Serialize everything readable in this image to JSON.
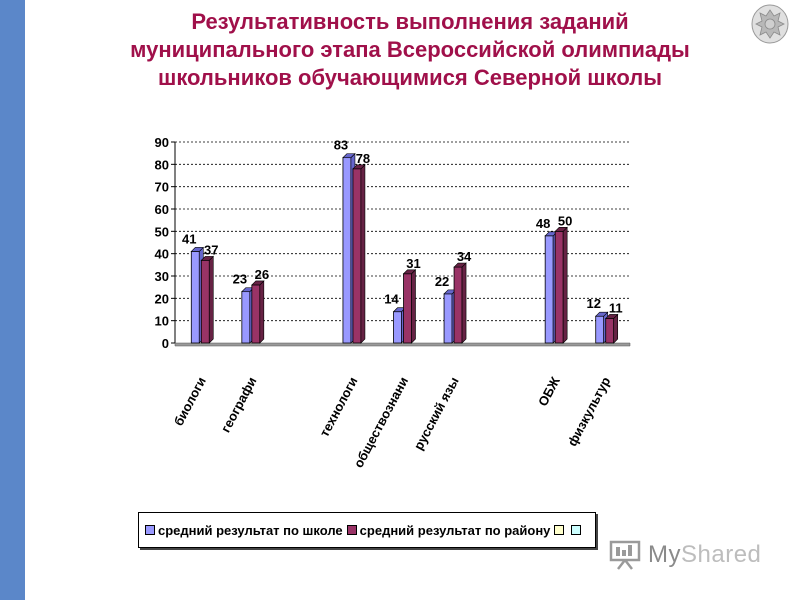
{
  "slide": {
    "title_lines": [
      "Результативность выполнения заданий",
      "муниципального этапа Всероссийской олимпиады",
      "школьников обучающимися  Северной школы"
    ],
    "emblem_icon": "coat-of-arms-icon",
    "accent_color": "#5b87c9",
    "title_color": "#a0104a"
  },
  "chart_data": {
    "type": "bar",
    "title": "",
    "xlabel": "",
    "ylabel": "",
    "ylim": [
      0,
      90
    ],
    "yticks": [
      0,
      10,
      20,
      30,
      40,
      50,
      60,
      70,
      80,
      90
    ],
    "grid": true,
    "categories": [
      "биологии",
      "географии",
      "",
      "технология",
      "обществознание",
      "русский язык",
      "",
      "ОБЖ",
      "физкультура"
    ],
    "category_labels_visible": [
      "биологи",
      "географи",
      "",
      "технологи",
      "обществознани",
      "русский язы",
      "",
      "ОБЖ",
      "физкультур"
    ],
    "series": [
      {
        "name": "средний результат по школе",
        "color": "#9999ff",
        "values": [
          41,
          23,
          null,
          83,
          14,
          22,
          null,
          48,
          12
        ]
      },
      {
        "name": "средний результат по району",
        "color": "#993366",
        "values": [
          37,
          26,
          null,
          78,
          31,
          34,
          null,
          50,
          11
        ]
      },
      {
        "name": "",
        "color": "#ffffcc",
        "values": [
          null,
          null,
          null,
          null,
          null,
          null,
          null,
          null,
          null
        ]
      },
      {
        "name": "",
        "color": "#ccffff",
        "values": [
          null,
          null,
          null,
          null,
          null,
          null,
          null,
          null,
          null
        ]
      }
    ],
    "legend_position": "bottom"
  },
  "watermark": {
    "text_main": "My",
    "text_rest": "Shared",
    "icon": "presentation-board-icon"
  }
}
